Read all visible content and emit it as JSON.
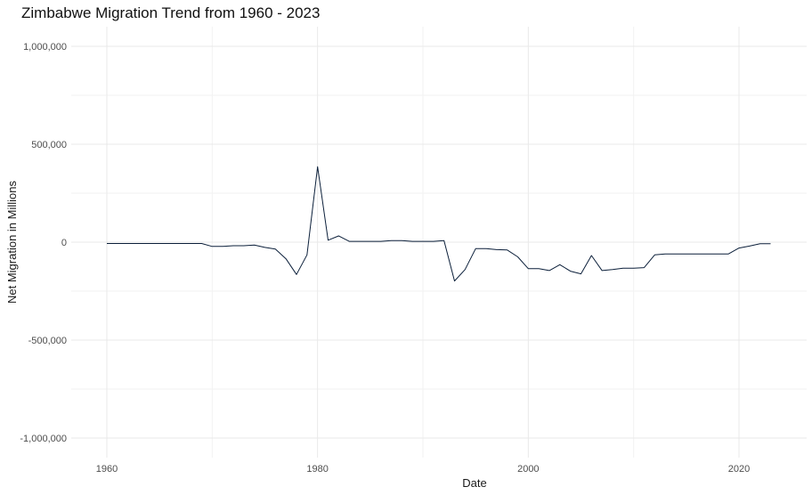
{
  "chart_data": {
    "type": "line",
    "title": "Zimbabwe Migration Trend from 1960 - 2023",
    "xlabel": "Date",
    "ylabel": "Net Migration in Millions",
    "xlim": [
      1960,
      2023
    ],
    "ylim": [
      -1000000,
      1000000
    ],
    "x_ticks": [
      1960,
      1980,
      2000,
      2020
    ],
    "y_ticks": [
      -1000000,
      -500000,
      0,
      500000,
      1000000
    ],
    "x_tick_labels": [
      "1960",
      "1980",
      "2000",
      "2020"
    ],
    "y_tick_labels": [
      "-1,000,000",
      "-500,000",
      "0",
      "500,000",
      "1,000,000"
    ],
    "grid": true,
    "line_color": "#0b1f3a",
    "series": [
      {
        "x": [
          1960,
          1961,
          1962,
          1963,
          1964,
          1965,
          1966,
          1967,
          1968,
          1969,
          1970,
          1971,
          1972,
          1973,
          1974,
          1975,
          1976,
          1977,
          1978,
          1979,
          1980,
          1981,
          1982,
          1983,
          1984,
          1985,
          1986,
          1987,
          1988,
          1989,
          1990,
          1991,
          1992,
          1993,
          1994,
          1995,
          1996,
          1997,
          1998,
          1999,
          2000,
          2001,
          2002,
          2003,
          2004,
          2005,
          2006,
          2007,
          2008,
          2009,
          2010,
          2011,
          2012,
          2013,
          2014,
          2015,
          2016,
          2017,
          2018,
          2019,
          2020,
          2021,
          2022,
          2023
        ],
        "values": [
          -7000,
          -7000,
          -7000,
          -7000,
          -7000,
          -7000,
          -7000,
          -7000,
          -7000,
          -7000,
          -22000,
          -22000,
          -18000,
          -18000,
          -15000,
          -27000,
          -35000,
          -85000,
          -165000,
          -65000,
          385000,
          10000,
          32000,
          4000,
          4000,
          4000,
          4000,
          8000,
          8000,
          4000,
          4000,
          4000,
          8000,
          -198000,
          -140000,
          -33000,
          -33000,
          -38000,
          -40000,
          -75000,
          -135000,
          -135000,
          -145000,
          -115000,
          -148000,
          -162000,
          -68000,
          -145000,
          -140000,
          -133000,
          -133000,
          -130000,
          -65000,
          -60000,
          -60000,
          -60000,
          -60000,
          -60000,
          -60000,
          -60000,
          -30000,
          -20000,
          -8000,
          -8000
        ]
      }
    ]
  }
}
